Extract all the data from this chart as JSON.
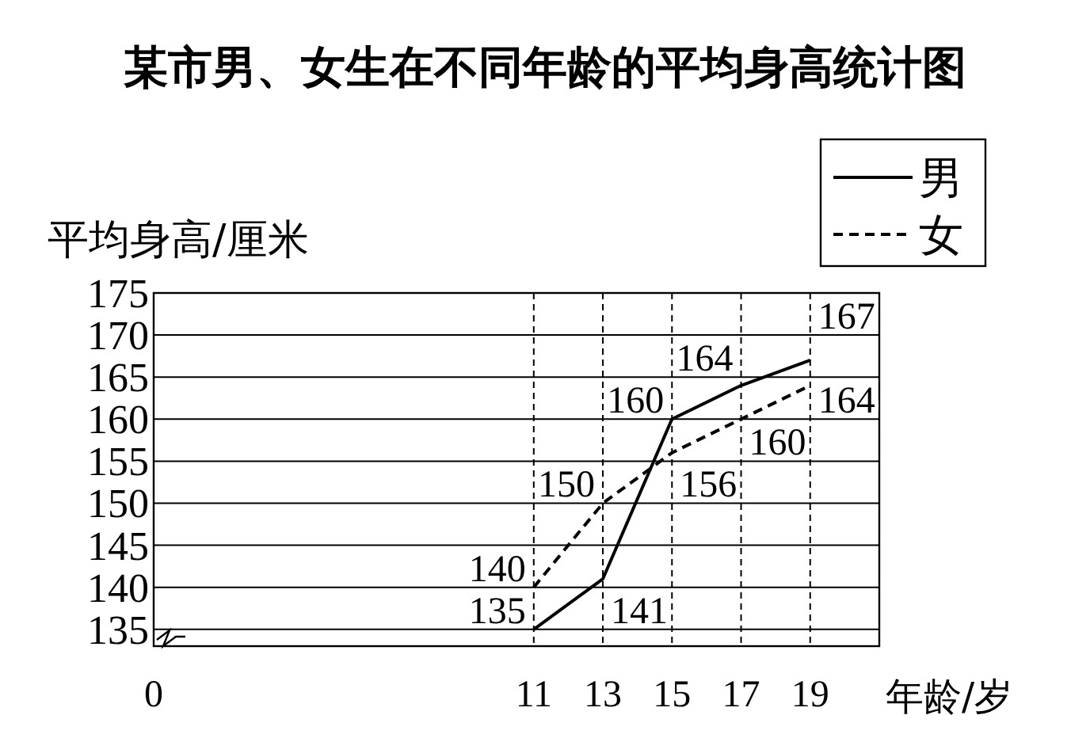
{
  "chart_data": {
    "type": "line",
    "title": "某市男、女生在不同年龄的平均身高统计图",
    "xlabel": "年龄/岁",
    "ylabel": "平均身高/厘米",
    "x": [
      11,
      13,
      15,
      17,
      19
    ],
    "series": [
      {
        "name": "男",
        "color": "#000000",
        "line_style": "solid",
        "values": [
          135,
          141,
          160,
          164,
          167
        ]
      },
      {
        "name": "女",
        "color": "#000000",
        "line_style": "dashed",
        "values": [
          140,
          150,
          156,
          160,
          164
        ]
      }
    ],
    "xlim": [
      0,
      21
    ],
    "xticks": [
      0,
      11,
      13,
      15,
      17,
      19
    ],
    "ylim": [
      133,
      175
    ],
    "yticks": [
      135,
      140,
      145,
      150,
      155,
      160,
      165,
      170,
      175
    ],
    "grid": true,
    "legend": "top right",
    "data_labels": true
  }
}
